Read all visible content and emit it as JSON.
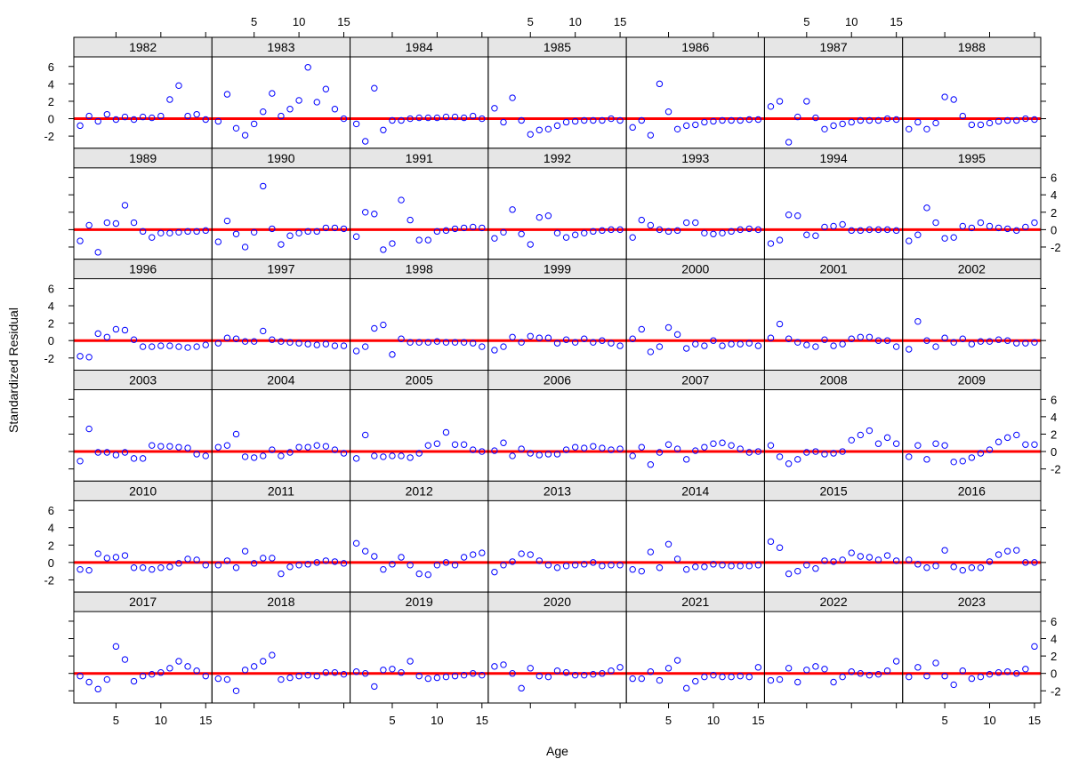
{
  "chart_data": {
    "type": "scatter",
    "layout": "lattice panels, 7 columns x 6 rows, panel order left-to-right within each row, rows top-to-bottom",
    "xlabel": "Age",
    "ylabel": "Standardized Residual",
    "x": [
      1,
      2,
      3,
      4,
      5,
      6,
      7,
      8,
      9,
      10,
      11,
      12,
      13,
      14,
      15
    ],
    "xlim": [
      0.3,
      15.7
    ],
    "ylim": [
      -3.4,
      7.1
    ],
    "x_ticks": [
      5,
      10,
      15
    ],
    "y_ticks": [
      -2,
      0,
      2,
      4,
      6
    ],
    "reference_line": {
      "y": 0,
      "color": "#ff0000"
    },
    "point_color": "#0000ff",
    "strip_color": "#e6e6e6",
    "panels": [
      {
        "year": "1982",
        "values": [
          -0.8,
          0.3,
          -0.3,
          0.5,
          -0.1,
          0.2,
          -0.1,
          0.2,
          0.1,
          0.3,
          2.2,
          3.8,
          0.3,
          0.5,
          -0.1
        ]
      },
      {
        "year": "1983",
        "values": [
          -0.3,
          2.8,
          -1.1,
          -1.9,
          -0.6,
          0.8,
          2.9,
          0.3,
          1.1,
          2.1,
          5.9,
          1.9,
          3.4,
          1.1,
          0.0
        ]
      },
      {
        "year": "1984",
        "values": [
          -0.6,
          -2.6,
          3.5,
          -1.3,
          -0.2,
          -0.2,
          0.0,
          0.1,
          0.1,
          0.1,
          0.2,
          0.2,
          0.1,
          0.3,
          0.0
        ]
      },
      {
        "year": "1985",
        "values": [
          1.2,
          -0.4,
          2.4,
          -0.2,
          -1.8,
          -1.3,
          -1.2,
          -0.8,
          -0.4,
          -0.3,
          -0.2,
          -0.2,
          -0.2,
          0.0,
          -0.2
        ]
      },
      {
        "year": "1986",
        "values": [
          -1.0,
          -0.2,
          -1.9,
          4.0,
          0.8,
          -1.2,
          -0.8,
          -0.7,
          -0.4,
          -0.3,
          -0.2,
          -0.2,
          -0.2,
          -0.1,
          -0.1
        ]
      },
      {
        "year": "1987",
        "values": [
          1.4,
          2.0,
          -2.7,
          0.2,
          2.0,
          0.1,
          -1.2,
          -0.8,
          -0.6,
          -0.4,
          -0.2,
          -0.2,
          -0.2,
          0.0,
          -0.1
        ]
      },
      {
        "year": "1988",
        "values": [
          -1.2,
          -0.4,
          -1.2,
          -0.5,
          2.5,
          2.2,
          0.3,
          -0.7,
          -0.7,
          -0.5,
          -0.3,
          -0.2,
          -0.2,
          0.0,
          -0.1
        ]
      },
      {
        "year": "1989",
        "values": [
          -1.3,
          0.5,
          -2.6,
          0.8,
          0.7,
          2.8,
          0.8,
          -0.2,
          -0.9,
          -0.4,
          -0.4,
          -0.3,
          -0.2,
          -0.2,
          -0.1
        ]
      },
      {
        "year": "1990",
        "values": [
          -1.4,
          1.0,
          -0.5,
          -2.0,
          -0.3,
          5.0,
          0.1,
          -1.7,
          -0.7,
          -0.4,
          -0.2,
          -0.2,
          0.2,
          0.2,
          0.1
        ]
      },
      {
        "year": "1991",
        "values": [
          -0.8,
          2.0,
          1.8,
          -2.3,
          -1.6,
          3.4,
          1.1,
          -1.2,
          -1.2,
          -0.2,
          -0.1,
          0.1,
          0.2,
          0.3,
          0.2
        ]
      },
      {
        "year": "1992",
        "values": [
          -1.0,
          -0.3,
          2.3,
          -0.5,
          -1.7,
          1.4,
          1.6,
          -0.4,
          -0.9,
          -0.6,
          -0.4,
          -0.2,
          -0.1,
          0.0,
          0.0
        ]
      },
      {
        "year": "1993",
        "values": [
          -0.9,
          1.1,
          0.5,
          0.0,
          -0.2,
          -0.1,
          0.8,
          0.8,
          -0.4,
          -0.5,
          -0.4,
          -0.2,
          0.0,
          0.1,
          0.0
        ]
      },
      {
        "year": "1994",
        "values": [
          -1.6,
          -1.2,
          1.7,
          1.6,
          -0.6,
          -0.7,
          0.3,
          0.4,
          0.6,
          -0.1,
          -0.1,
          0.0,
          0.0,
          0.0,
          -0.1
        ]
      },
      {
        "year": "1995",
        "values": [
          -1.3,
          -0.6,
          2.5,
          0.8,
          -1.0,
          -0.9,
          0.4,
          0.2,
          0.8,
          0.4,
          0.2,
          0.1,
          -0.1,
          0.3,
          0.8
        ]
      },
      {
        "year": "1996",
        "values": [
          -1.8,
          -1.9,
          0.8,
          0.4,
          1.3,
          1.2,
          0.1,
          -0.7,
          -0.7,
          -0.6,
          -0.6,
          -0.7,
          -0.8,
          -0.7,
          -0.5
        ]
      },
      {
        "year": "1997",
        "values": [
          -0.3,
          0.3,
          0.2,
          -0.1,
          -0.1,
          1.1,
          0.1,
          -0.1,
          -0.2,
          -0.3,
          -0.4,
          -0.5,
          -0.4,
          -0.6,
          -0.6
        ]
      },
      {
        "year": "1998",
        "values": [
          -1.2,
          -0.7,
          1.4,
          1.8,
          -1.6,
          0.2,
          -0.2,
          -0.2,
          -0.2,
          -0.1,
          -0.2,
          -0.2,
          -0.2,
          -0.3,
          -0.7
        ]
      },
      {
        "year": "1999",
        "values": [
          -1.1,
          -0.7,
          0.4,
          -0.2,
          0.5,
          0.3,
          0.3,
          -0.3,
          0.1,
          -0.2,
          0.2,
          -0.2,
          0.0,
          -0.3,
          -0.6
        ]
      },
      {
        "year": "2000",
        "values": [
          0.2,
          1.3,
          -1.3,
          -0.7,
          1.5,
          0.7,
          -0.9,
          -0.4,
          -0.6,
          0.0,
          -0.6,
          -0.4,
          -0.4,
          -0.3,
          -0.6
        ]
      },
      {
        "year": "2001",
        "values": [
          0.3,
          1.9,
          0.2,
          -0.2,
          -0.5,
          -0.7,
          0.1,
          -0.6,
          -0.4,
          0.2,
          0.4,
          0.4,
          0.0,
          0.0,
          -0.7
        ]
      },
      {
        "year": "2002",
        "values": [
          -1.0,
          2.2,
          0.0,
          -0.7,
          0.3,
          -0.2,
          0.2,
          -0.4,
          -0.1,
          -0.1,
          0.1,
          0.0,
          -0.3,
          -0.3,
          -0.2
        ]
      },
      {
        "year": "2003",
        "values": [
          -1.1,
          2.6,
          -0.1,
          -0.1,
          -0.4,
          -0.1,
          -0.8,
          -0.8,
          0.7,
          0.6,
          0.6,
          0.5,
          0.4,
          -0.3,
          -0.5
        ]
      },
      {
        "year": "2004",
        "values": [
          0.5,
          0.7,
          2.0,
          -0.6,
          -0.7,
          -0.5,
          0.2,
          -0.5,
          -0.1,
          0.5,
          0.5,
          0.7,
          0.6,
          0.2,
          -0.2
        ]
      },
      {
        "year": "2005",
        "values": [
          -0.8,
          1.9,
          -0.5,
          -0.6,
          -0.5,
          -0.5,
          -0.7,
          -0.2,
          0.7,
          0.9,
          2.2,
          0.8,
          0.8,
          0.2,
          0.0
        ]
      },
      {
        "year": "2006",
        "values": [
          0.1,
          1.0,
          -0.5,
          0.3,
          -0.2,
          -0.4,
          -0.3,
          -0.3,
          0.2,
          0.5,
          0.4,
          0.6,
          0.4,
          0.2,
          0.3
        ]
      },
      {
        "year": "2007",
        "values": [
          -0.5,
          0.5,
          -1.5,
          -0.1,
          0.8,
          0.3,
          -0.9,
          0.1,
          0.5,
          0.9,
          1.0,
          0.7,
          0.3,
          -0.1,
          0.0
        ]
      },
      {
        "year": "2008",
        "values": [
          0.7,
          -0.6,
          -1.4,
          -0.9,
          -0.1,
          0.0,
          -0.3,
          -0.2,
          0.0,
          1.3,
          1.9,
          2.4,
          0.9,
          1.6,
          0.9
        ]
      },
      {
        "year": "2009",
        "values": [
          -0.6,
          0.7,
          -0.9,
          0.9,
          0.7,
          -1.2,
          -1.1,
          -0.7,
          -0.2,
          0.2,
          1.1,
          1.6,
          1.9,
          0.8,
          0.8
        ]
      },
      {
        "year": "2010",
        "values": [
          -0.8,
          -0.9,
          1.0,
          0.5,
          0.6,
          0.8,
          -0.6,
          -0.6,
          -0.8,
          -0.6,
          -0.5,
          -0.1,
          0.4,
          0.3,
          -0.3
        ]
      },
      {
        "year": "2011",
        "values": [
          -0.3,
          0.2,
          -0.6,
          1.3,
          -0.1,
          0.5,
          0.5,
          -1.3,
          -0.5,
          -0.3,
          -0.2,
          0.0,
          0.2,
          0.1,
          -0.1
        ]
      },
      {
        "year": "2012",
        "values": [
          2.2,
          1.3,
          0.7,
          -0.8,
          -0.2,
          0.6,
          -0.3,
          -1.3,
          -1.4,
          -0.3,
          0.0,
          -0.3,
          0.6,
          0.9,
          1.1
        ]
      },
      {
        "year": "2013",
        "values": [
          -1.1,
          -0.3,
          0.1,
          1.0,
          0.9,
          0.2,
          -0.3,
          -0.6,
          -0.4,
          -0.3,
          -0.2,
          0.0,
          -0.4,
          -0.3,
          -0.3
        ]
      },
      {
        "year": "2014",
        "values": [
          -0.8,
          -1.0,
          1.2,
          -0.6,
          2.1,
          0.4,
          -0.8,
          -0.5,
          -0.5,
          -0.2,
          -0.3,
          -0.4,
          -0.4,
          -0.4,
          -0.3
        ]
      },
      {
        "year": "2015",
        "values": [
          2.4,
          1.7,
          -1.3,
          -1.0,
          -0.3,
          -0.7,
          0.2,
          0.1,
          0.3,
          1.1,
          0.7,
          0.6,
          0.3,
          0.8,
          0.2
        ]
      },
      {
        "year": "2016",
        "values": [
          0.3,
          -0.2,
          -0.6,
          -0.4,
          1.4,
          -0.5,
          -0.9,
          -0.6,
          -0.6,
          0.1,
          0.9,
          1.3,
          1.4,
          0.0,
          0.0
        ]
      },
      {
        "year": "2017",
        "values": [
          -0.3,
          -1.0,
          -1.8,
          -0.7,
          3.1,
          1.6,
          -0.9,
          -0.3,
          -0.1,
          0.1,
          0.6,
          1.4,
          0.8,
          0.3,
          -0.3
        ]
      },
      {
        "year": "2018",
        "values": [
          -0.6,
          -0.7,
          -2.0,
          0.4,
          0.8,
          1.4,
          2.1,
          -0.7,
          -0.5,
          -0.3,
          -0.2,
          -0.3,
          0.1,
          0.1,
          -0.1
        ]
      },
      {
        "year": "2019",
        "values": [
          0.2,
          0.0,
          -1.5,
          0.4,
          0.5,
          0.1,
          1.4,
          -0.3,
          -0.6,
          -0.5,
          -0.4,
          -0.3,
          -0.2,
          0.0,
          -0.2
        ]
      },
      {
        "year": "2020",
        "values": [
          0.8,
          1.0,
          0.0,
          -1.7,
          0.6,
          -0.3,
          -0.4,
          0.3,
          0.1,
          -0.2,
          -0.2,
          -0.1,
          0.0,
          0.3,
          0.7
        ]
      },
      {
        "year": "2021",
        "values": [
          -0.6,
          -0.6,
          0.2,
          -0.8,
          0.6,
          1.5,
          -1.7,
          -0.9,
          -0.4,
          -0.2,
          -0.4,
          -0.4,
          -0.3,
          -0.4,
          0.7
        ]
      },
      {
        "year": "2022",
        "values": [
          -0.8,
          -0.7,
          0.6,
          -1.0,
          0.4,
          0.8,
          0.5,
          -1.0,
          -0.4,
          0.2,
          0.0,
          -0.2,
          -0.1,
          0.3,
          1.4
        ]
      },
      {
        "year": "2023",
        "values": [
          -0.4,
          0.7,
          -0.3,
          1.2,
          -0.3,
          -1.3,
          0.3,
          -0.6,
          -0.4,
          -0.1,
          0.1,
          0.2,
          0.0,
          0.5,
          3.1
        ]
      }
    ]
  }
}
